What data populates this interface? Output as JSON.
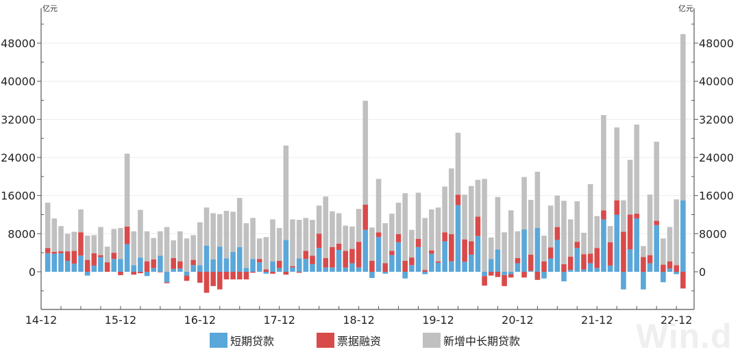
{
  "chart_data": {
    "type": "bar",
    "stacked": true,
    "title": "",
    "unit_left": "亿元",
    "unit_right": "亿元",
    "xlabel": "",
    "ylabel": "亿元",
    "ylim": [
      -8000,
      52000
    ],
    "yticks": [
      0,
      8000,
      16000,
      24000,
      32000,
      40000,
      48000
    ],
    "xtick_labels": [
      "14-12",
      "15-12",
      "16-12",
      "17-12",
      "18-12",
      "19-12",
      "20-12",
      "21-12",
      "22-12"
    ],
    "grid": true,
    "legend_position": "bottom",
    "categories": [
      "15-01",
      "15-02",
      "15-03",
      "15-04",
      "15-05",
      "15-06",
      "15-07",
      "15-08",
      "15-09",
      "15-10",
      "15-11",
      "15-12",
      "16-01",
      "16-02",
      "16-03",
      "16-04",
      "16-05",
      "16-06",
      "16-07",
      "16-08",
      "16-09",
      "16-10",
      "16-11",
      "16-12",
      "17-01",
      "17-02",
      "17-03",
      "17-04",
      "17-05",
      "17-06",
      "17-07",
      "17-08",
      "17-09",
      "17-10",
      "17-11",
      "17-12",
      "18-01",
      "18-02",
      "18-03",
      "18-04",
      "18-05",
      "18-06",
      "18-07",
      "18-08",
      "18-09",
      "18-10",
      "18-11",
      "18-12",
      "19-01",
      "19-02",
      "19-03",
      "19-04",
      "19-05",
      "19-06",
      "19-07",
      "19-08",
      "19-09",
      "19-10",
      "19-11",
      "19-12",
      "20-01",
      "20-02",
      "20-03",
      "20-04",
      "20-05",
      "20-06",
      "20-07",
      "20-08",
      "20-09",
      "20-10",
      "20-11",
      "20-12",
      "21-01",
      "21-02",
      "21-03",
      "21-04",
      "21-05",
      "21-06",
      "21-07",
      "21-08",
      "21-09",
      "21-10",
      "21-11",
      "21-12",
      "22-01",
      "22-02",
      "22-03",
      "22-04",
      "22-05",
      "22-06",
      "22-07",
      "22-08",
      "22-09",
      "22-10",
      "22-11",
      "22-12",
      "23-01"
    ],
    "series": [
      {
        "name": "短期贷款",
        "color": "#5aa7d9",
        "values": [
          3900,
          3800,
          3900,
          2300,
          1700,
          3400,
          -800,
          1300,
          3100,
          0,
          2700,
          2700,
          5800,
          1400,
          3000,
          -900,
          800,
          3400,
          -2200,
          600,
          700,
          -800,
          1400,
          1400,
          5500,
          2600,
          5300,
          2800,
          4200,
          5200,
          800,
          2700,
          2000,
          -400,
          2200,
          800,
          6700,
          900,
          2800,
          2700,
          1600,
          5000,
          900,
          900,
          4600,
          900,
          1800,
          900,
          8800,
          -1300,
          7300,
          -400,
          3500,
          6200,
          -1400,
          1400,
          5200,
          -500,
          3800,
          1900,
          6400,
          2200,
          14000,
          2100,
          3600,
          7500,
          -900,
          2700,
          4700,
          -700,
          -500,
          1800,
          8900,
          200,
          9200,
          -1400,
          2800,
          6700,
          -2000,
          400,
          5000,
          500,
          1800,
          800,
          11000,
          1300,
          12000,
          -3700,
          4700,
          11200,
          -3700,
          1800,
          9800,
          -2200,
          700,
          -500,
          15000
        ]
      },
      {
        "name": "票据融资",
        "color": "#d94a4a",
        "values": [
          1100,
          400,
          400,
          2000,
          2700,
          4900,
          2500,
          2600,
          400,
          2000,
          1300,
          -700,
          3700,
          -600,
          -300,
          2200,
          1800,
          -100,
          -200,
          2300,
          1500,
          -1100,
          1100,
          -2300,
          -4400,
          -3000,
          -3700,
          -1600,
          -1600,
          -1600,
          -1600,
          -200,
          700,
          500,
          -400,
          1500,
          -600,
          300,
          -200,
          1700,
          1800,
          3000,
          2000,
          4300,
          1300,
          3500,
          3000,
          5400,
          5300,
          2300,
          1000,
          1800,
          900,
          1700,
          2300,
          1600,
          1700,
          400,
          700,
          300,
          1900,
          5700,
          2200,
          4700,
          2800,
          4100,
          -2000,
          -800,
          -1100,
          -2300,
          -700,
          1100,
          -1200,
          3400,
          -1700,
          2200,
          2300,
          2700,
          1600,
          2800,
          1300,
          3200,
          2000,
          4200,
          1900,
          4900,
          3000,
          8400,
          7300,
          1000,
          3100,
          1700,
          900,
          1500,
          1500,
          1400,
          -3500
        ]
      },
      {
        "name": "新增中长期贷款",
        "color": "#c0c0c0",
        "values": [
          9500,
          7000,
          5300,
          3700,
          4000,
          4800,
          5100,
          3800,
          5900,
          3300,
          5000,
          6500,
          15300,
          7100,
          10000,
          6300,
          4500,
          5100,
          9400,
          3700,
          6300,
          7000,
          5200,
          9000,
          8000,
          9700,
          6800,
          10000,
          8400,
          10300,
          9400,
          8600,
          4300,
          6800,
          8800,
          6900,
          19800,
          9800,
          8100,
          6900,
          7500,
          5900,
          12900,
          7500,
          6400,
          5300,
          4700,
          6900,
          21800,
          7000,
          11200,
          8400,
          7800,
          6600,
          14200,
          5800,
          9700,
          10900,
          8600,
          11300,
          9600,
          13800,
          13000,
          9400,
          11600,
          7700,
          19500,
          4500,
          11000,
          8300,
          12900,
          5600,
          11000,
          11500,
          11800,
          5400,
          8800,
          6600,
          13300,
          7800,
          8500,
          4500,
          14600,
          6700,
          20000,
          3400,
          15300,
          6600,
          11500,
          18700,
          2300,
          12700,
          16600,
          5500,
          7200,
          13800,
          34900
        ]
      }
    ]
  },
  "axes": {
    "left_unit": "亿元",
    "right_unit": "亿元",
    "y_tick_labels": [
      "48000",
      "40000",
      "32000",
      "24000",
      "16000",
      "8000",
      "0"
    ],
    "x_tick_labels": [
      "14-12",
      "15-12",
      "16-12",
      "17-12",
      "18-12",
      "19-12",
      "20-12",
      "21-12",
      "22-12"
    ]
  },
  "legend": {
    "items": [
      {
        "label": "短期贷款",
        "color": "#5aa7d9"
      },
      {
        "label": "票据融资",
        "color": "#d94a4a"
      },
      {
        "label": "新增中长期贷款",
        "color": "#c0c0c0"
      }
    ]
  },
  "watermark": "Win.d"
}
